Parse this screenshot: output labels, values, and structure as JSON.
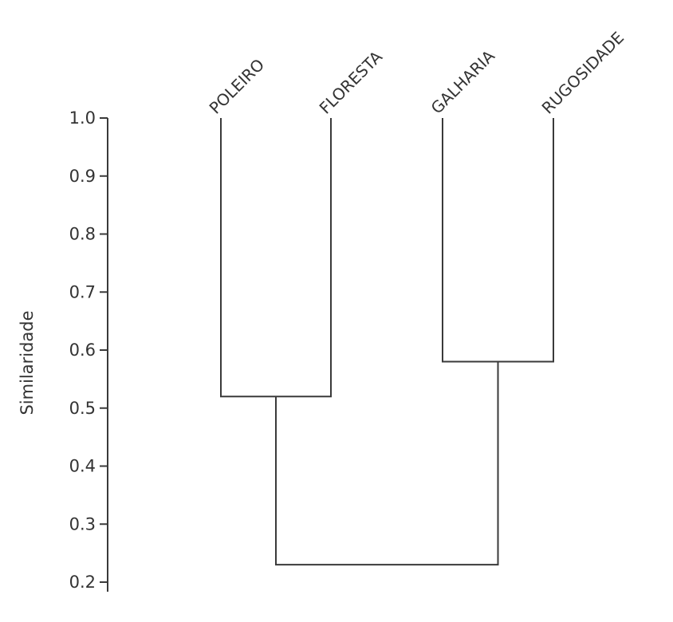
{
  "chart_data": {
    "type": "dendrogram",
    "ylabel": "Similaridade",
    "ylim": [
      0.2,
      1.0
    ],
    "yticks": [
      "0.2",
      "0.3",
      "0.4",
      "0.5",
      "0.6",
      "0.7",
      "0.8",
      "0.9",
      "1.0"
    ],
    "leaves": [
      "POLEIRO",
      "FLORESTA",
      "GALHARIA",
      "RUGOSIDADE"
    ],
    "leaf_similarity": 1.0,
    "merges": [
      {
        "left": "POLEIRO",
        "right": "FLORESTA",
        "similarity": 0.52
      },
      {
        "left": "GALHARIA",
        "right": "RUGOSIDADE",
        "similarity": 0.58
      },
      {
        "left": "POLEIRO+FLORESTA",
        "right": "GALHARIA+RUGOSIDADE",
        "similarity": 0.23
      }
    ]
  }
}
